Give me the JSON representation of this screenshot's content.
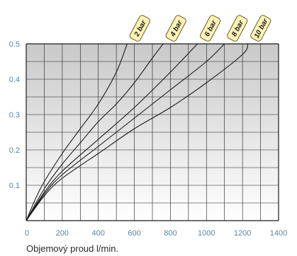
{
  "chart_data": {
    "type": "line",
    "title": "",
    "xlabel": "Objemový proud l/min.",
    "ylabel": "",
    "xlim": [
      0,
      1400
    ],
    "ylim": [
      0,
      0.5
    ],
    "x_ticks": [
      "0",
      "200",
      "400",
      "600",
      "800",
      "1000",
      "1200",
      "1400"
    ],
    "y_ticks": [
      "0.1",
      "0.2",
      "0.3",
      "0.4",
      "0.5"
    ],
    "grid": true,
    "series": [
      {
        "name": "2 bar",
        "x": [
          0,
          50,
          100,
          200,
          300,
          400,
          500,
          560
        ],
        "y": [
          0,
          0.06,
          0.11,
          0.19,
          0.26,
          0.33,
          0.42,
          0.5
        ]
      },
      {
        "name": "4 bar",
        "x": [
          0,
          100,
          200,
          300,
          400,
          500,
          600,
          700,
          760
        ],
        "y": [
          0,
          0.09,
          0.16,
          0.22,
          0.28,
          0.33,
          0.39,
          0.46,
          0.5
        ]
      },
      {
        "name": "6 bar",
        "x": [
          0,
          100,
          200,
          400,
          600,
          800,
          950
        ],
        "y": [
          0,
          0.08,
          0.14,
          0.23,
          0.32,
          0.42,
          0.5
        ]
      },
      {
        "name": "8 bar",
        "x": [
          0,
          100,
          200,
          400,
          600,
          800,
          1000,
          1100
        ],
        "y": [
          0,
          0.075,
          0.13,
          0.21,
          0.29,
          0.37,
          0.45,
          0.5
        ]
      },
      {
        "name": "10 bar",
        "x": [
          0,
          100,
          200,
          400,
          600,
          800,
          1000,
          1200,
          1230
        ],
        "y": [
          0,
          0.07,
          0.12,
          0.19,
          0.26,
          0.32,
          0.39,
          0.47,
          0.5
        ]
      }
    ],
    "line_color": "#1a1a1a",
    "tag_fill": "#fdf3b5",
    "tag_stroke": "#6b5a2a",
    "grid_color": "#1a1a1a",
    "tick_color": "#5b84a6"
  }
}
